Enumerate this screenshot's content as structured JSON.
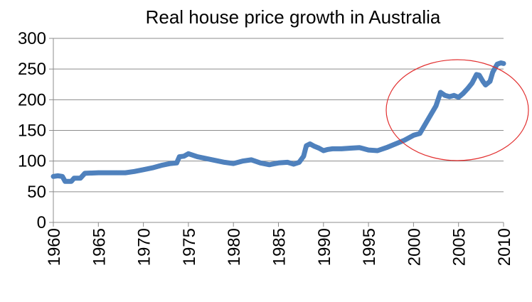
{
  "chart_data": {
    "type": "line",
    "title": "Real house price growth in Australia",
    "xlabel": "",
    "ylabel": "",
    "xlim": [
      1960,
      2010
    ],
    "ylim": [
      0,
      300
    ],
    "x_ticks": [
      "1960",
      "1965",
      "1970",
      "1975",
      "1980",
      "1985",
      "1990",
      "1995",
      "2000",
      "2005",
      "2010"
    ],
    "y_ticks": [
      "0",
      "50",
      "100",
      "150",
      "200",
      "250",
      "300"
    ],
    "grid": true,
    "legend": "none",
    "series": [
      {
        "color": "#4f81bd",
        "x": [
          1960,
          1960.5,
          1961,
          1961.3,
          1962,
          1962.3,
          1963,
          1963.5,
          1965,
          1967,
          1968,
          1969,
          1970,
          1971,
          1972,
          1973,
          1973.7,
          1974,
          1974.5,
          1975,
          1976,
          1977,
          1978,
          1979,
          1980,
          1981,
          1982,
          1983,
          1984,
          1985,
          1986,
          1986.7,
          1987.3,
          1987.8,
          1988.1,
          1988.5,
          1989,
          1989.5,
          1990,
          1990.5,
          1991,
          1992,
          1993,
          1994,
          1995,
          1996,
          1997,
          1998,
          1999,
          2000,
          2000.7,
          2001.5,
          2002.5,
          2003,
          2003.5,
          2004,
          2004.5,
          2005,
          2005.5,
          2006,
          2006.5,
          2007,
          2007.3,
          2007.7,
          2008,
          2008.5,
          2008.8,
          2009.3,
          2009.7,
          2010
        ],
        "values": [
          75,
          76,
          75,
          67,
          67,
          72,
          72,
          80,
          81,
          81,
          81,
          83,
          86,
          89,
          93,
          96,
          97,
          107,
          108,
          112,
          107,
          104,
          101,
          98,
          96,
          100,
          102,
          97,
          94,
          97,
          98,
          95,
          98,
          108,
          125,
          128,
          124,
          121,
          117,
          119,
          120,
          120,
          121,
          122,
          118,
          117,
          122,
          128,
          134,
          142,
          145,
          165,
          190,
          212,
          207,
          205,
          207,
          204,
          210,
          218,
          227,
          241,
          240,
          230,
          224,
          230,
          245,
          258,
          260,
          259
        ]
      }
    ]
  }
}
